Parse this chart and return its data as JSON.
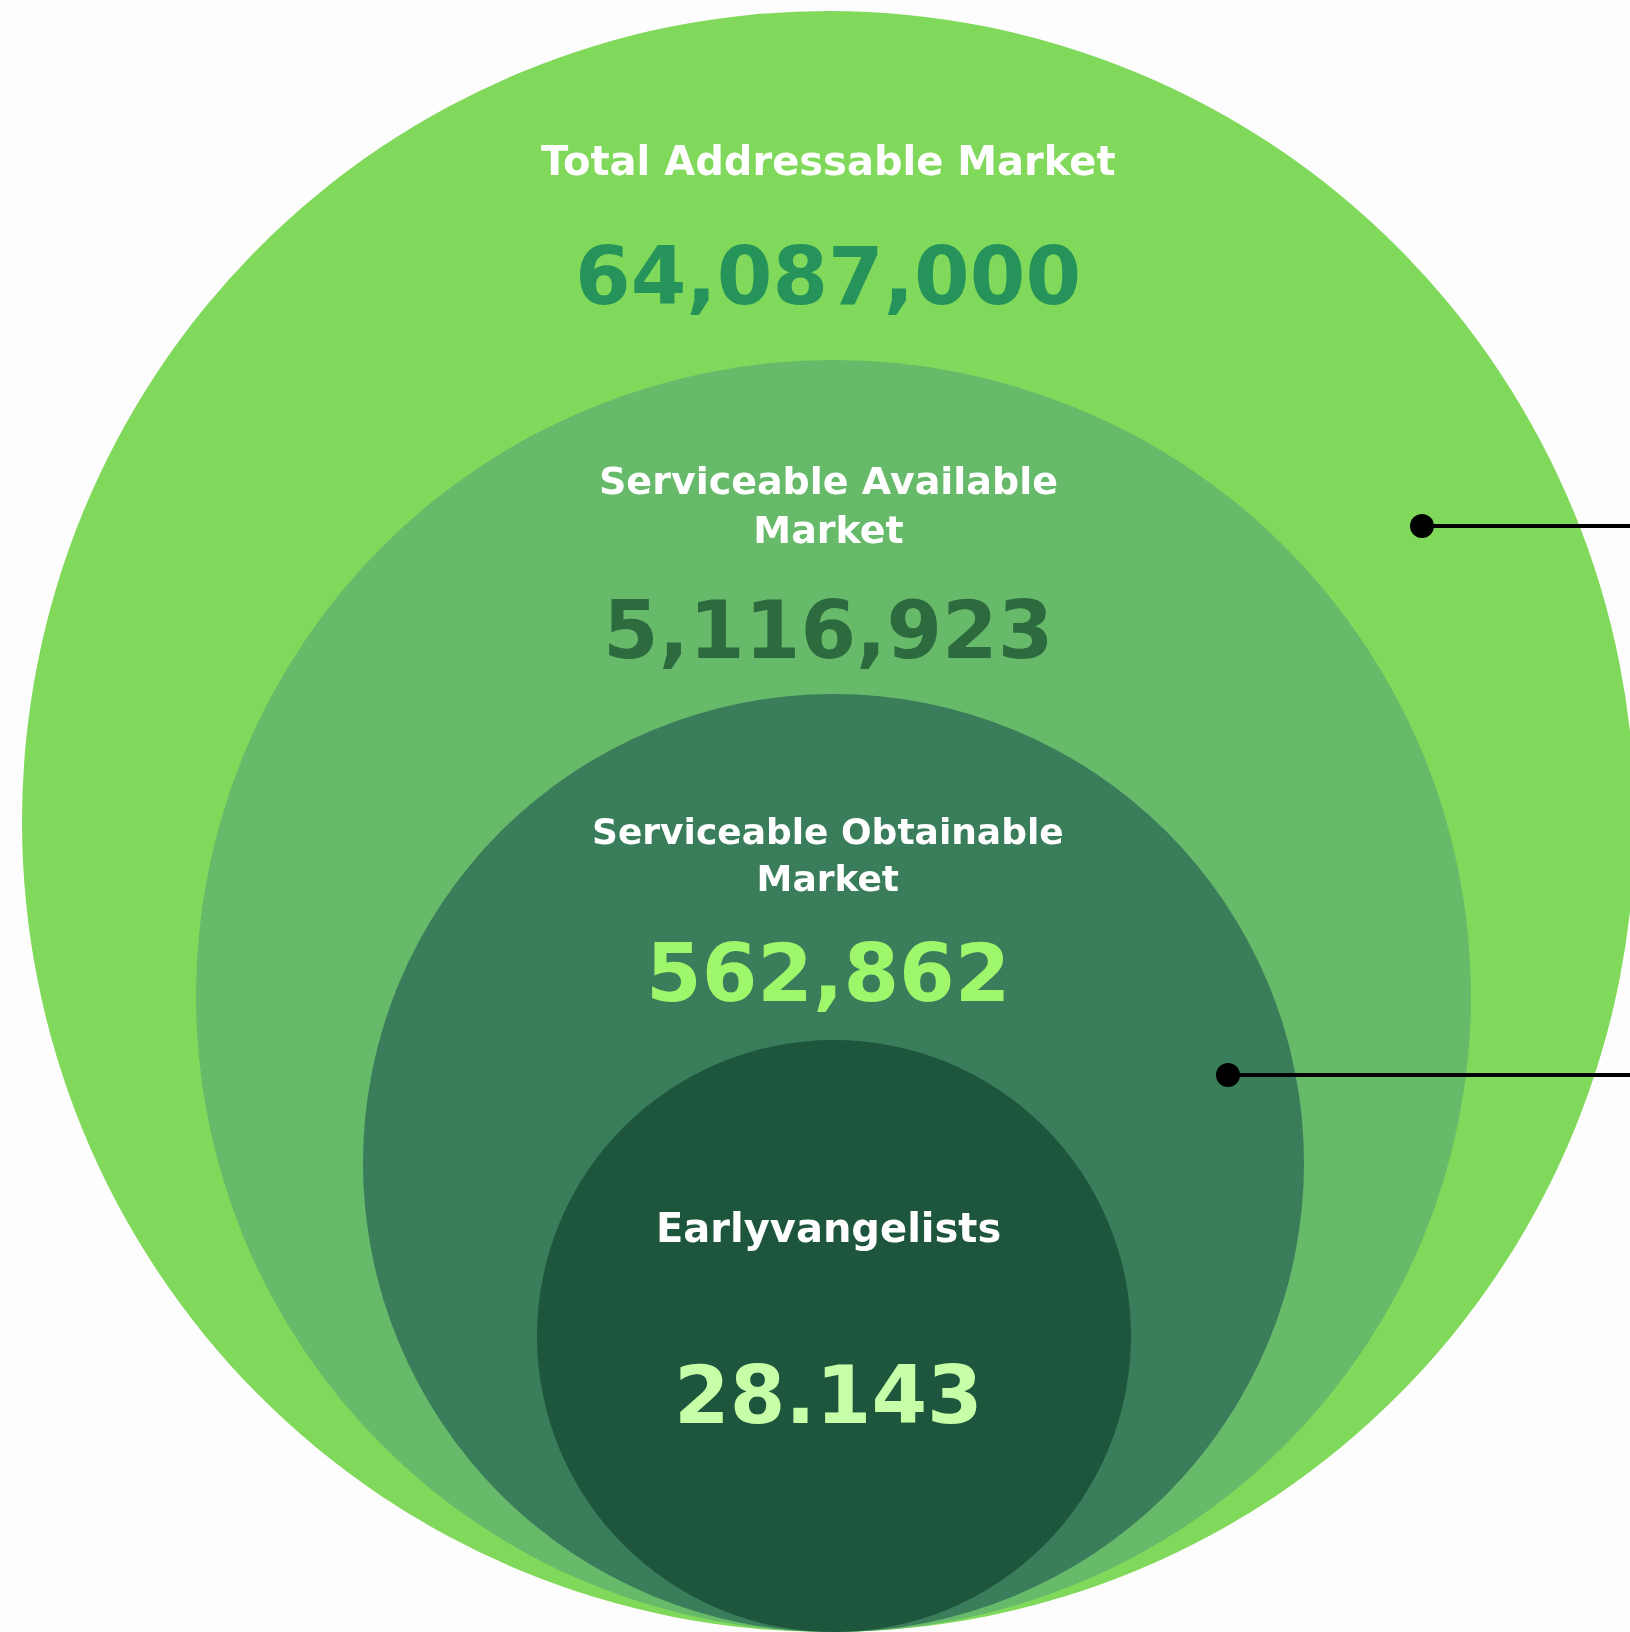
{
  "chart_data": {
    "type": "other",
    "categories": [
      "Total Addressable Market",
      "Serviceable Available Market",
      "Serviceable Obtainable Market",
      "Earlyvangelists"
    ],
    "values": [
      64087000,
      5116923,
      562862,
      28.143
    ],
    "value_labels": [
      "64,087,000",
      "5,116,923",
      "562,862",
      "28.143"
    ],
    "colors": [
      "#80d95a",
      "#66ba6a",
      "#3a7d5a",
      "#1d563c"
    ]
  }
}
